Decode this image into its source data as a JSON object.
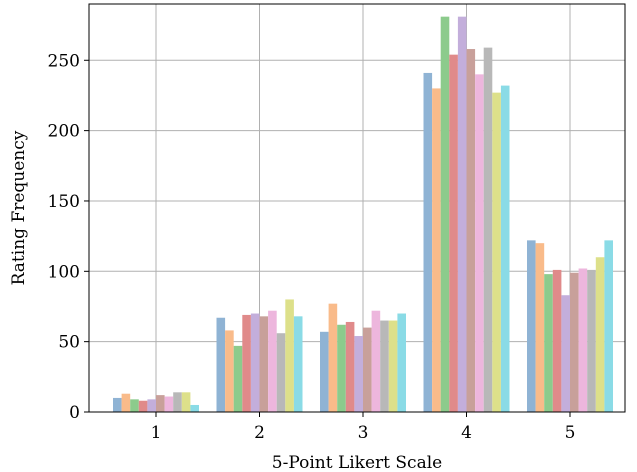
{
  "chart_data": {
    "type": "bar",
    "title": "",
    "xlabel": "5-Point Likert Scale",
    "ylabel": "Rating Frequency",
    "categories": [
      "1",
      "2",
      "3",
      "4",
      "5"
    ],
    "ylim": [
      0,
      290
    ],
    "yticks": [
      0,
      50,
      100,
      150,
      200,
      250
    ],
    "grid": true,
    "legend": "none",
    "series": [
      {
        "values": [
          10,
          67,
          57,
          241,
          122
        ],
        "color": "#8fb3d4"
      },
      {
        "values": [
          13,
          58,
          77,
          230,
          120
        ],
        "color": "#f9bb8a"
      },
      {
        "values": [
          9,
          47,
          62,
          281,
          98
        ],
        "color": "#8ccb8c"
      },
      {
        "values": [
          8,
          69,
          64,
          254,
          101
        ],
        "color": "#e08a8a"
      },
      {
        "values": [
          9,
          70,
          54,
          281,
          83
        ],
        "color": "#c3aedb"
      },
      {
        "values": [
          12,
          68,
          60,
          258,
          99
        ],
        "color": "#c8a09a"
      },
      {
        "values": [
          11,
          72,
          72,
          240,
          102
        ],
        "color": "#edb6dd"
      },
      {
        "values": [
          14,
          56,
          65,
          259,
          101
        ],
        "color": "#b8b8b8"
      },
      {
        "values": [
          14,
          80,
          65,
          227,
          110
        ],
        "color": "#dde08a"
      },
      {
        "values": [
          5,
          68,
          70,
          232,
          122
        ],
        "color": "#8adbe6"
      }
    ]
  }
}
